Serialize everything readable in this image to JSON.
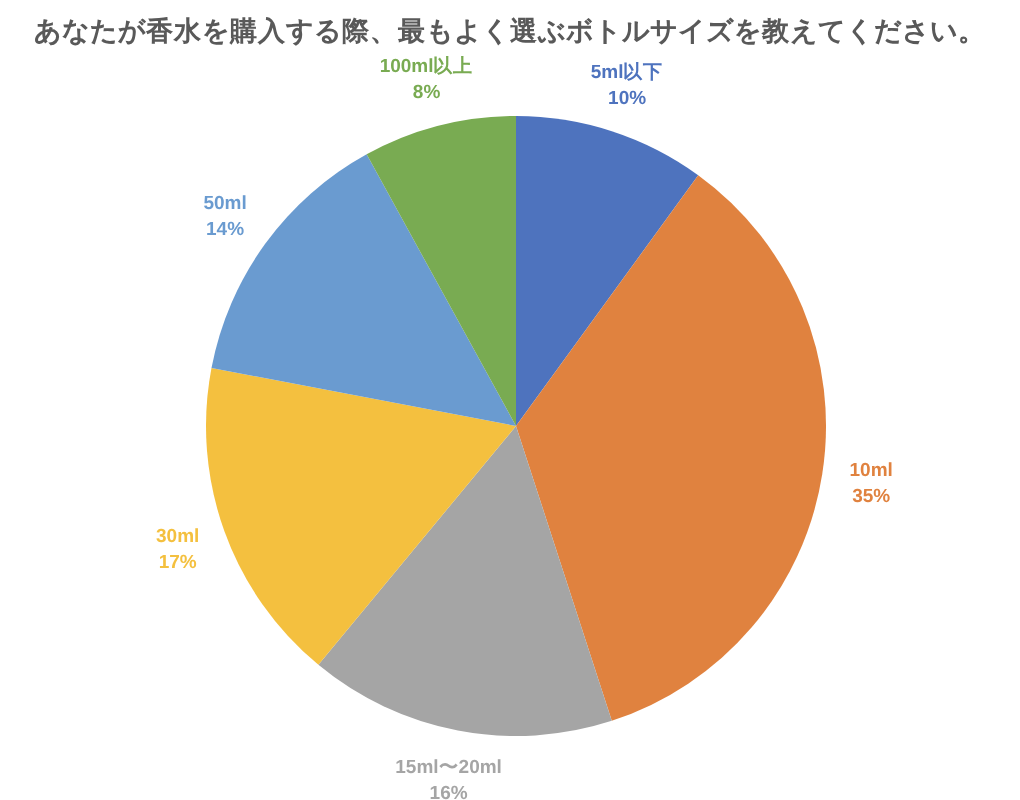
{
  "chart_data": {
    "type": "pie",
    "title": "あなたが香水を購入する際、最もよく選ぶボトルサイズを教えてください。",
    "categories": [
      "5ml以下",
      "10ml",
      "15ml〜20ml",
      "30ml",
      "50ml",
      "100ml以上"
    ],
    "values": [
      10,
      35,
      16,
      17,
      14,
      8
    ],
    "value_labels": [
      "10%",
      "35%",
      "16%",
      "17%",
      "14%",
      "8%"
    ],
    "colors": [
      "#4e73be",
      "#e0823f",
      "#a5a5a5",
      "#f4c03f",
      "#6a9bd0",
      "#79ab52"
    ]
  }
}
